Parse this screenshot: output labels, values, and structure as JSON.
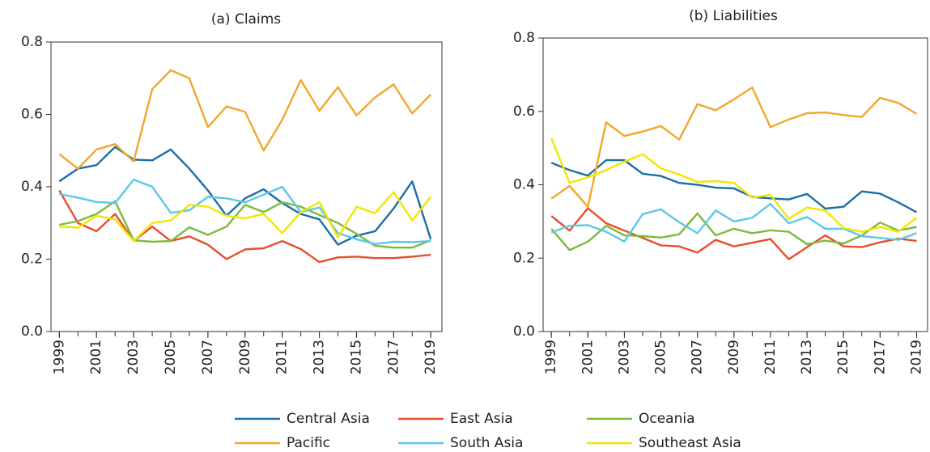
{
  "chart_data": [
    {
      "type": "line",
      "title": "(a) Claims",
      "x": [
        1999,
        2000,
        2001,
        2002,
        2003,
        2004,
        2005,
        2006,
        2007,
        2008,
        2009,
        2010,
        2011,
        2012,
        2013,
        2014,
        2015,
        2016,
        2017,
        2018,
        2019
      ],
      "xlim": [
        1998.55,
        2019.6
      ],
      "xticks": [
        1999,
        2001,
        2003,
        2005,
        2007,
        2009,
        2011,
        2013,
        2015,
        2017,
        2019
      ],
      "ylim": [
        0,
        0.8
      ],
      "yticks": [
        {
          "value": 0,
          "label": "0.0"
        },
        0.2,
        0.4,
        0.6,
        0.8
      ],
      "series": [
        {
          "name": "Central Asia",
          "color": "#1a6fa8",
          "values": [
            0.415,
            0.45,
            0.46,
            0.51,
            0.475,
            0.473,
            0.503,
            0.45,
            0.39,
            0.32,
            0.368,
            0.393,
            0.355,
            0.325,
            0.31,
            0.24,
            0.265,
            0.277,
            0.34,
            0.415,
            0.255
          ]
        },
        {
          "name": "East Asia",
          "color": "#e84e2b",
          "values": [
            0.39,
            0.3,
            0.277,
            0.325,
            0.25,
            0.29,
            0.25,
            0.263,
            0.24,
            0.2,
            0.227,
            0.23,
            0.25,
            0.228,
            0.192,
            0.205,
            0.207,
            0.203,
            0.203,
            0.207,
            0.212
          ]
        },
        {
          "name": "Oceania",
          "color": "#7dba3b",
          "values": [
            0.295,
            0.305,
            0.325,
            0.36,
            0.252,
            0.248,
            0.25,
            0.288,
            0.267,
            0.29,
            0.35,
            0.33,
            0.357,
            0.345,
            0.322,
            0.3,
            0.27,
            0.237,
            0.232,
            0.232,
            0.252
          ]
        },
        {
          "name": "Pacific",
          "color": "#f2a72b",
          "values": [
            0.49,
            0.45,
            0.503,
            0.518,
            0.47,
            0.67,
            0.722,
            0.7,
            0.565,
            0.622,
            0.607,
            0.5,
            0.585,
            0.695,
            0.61,
            0.675,
            0.597,
            0.647,
            0.683,
            0.603,
            0.655
          ]
        },
        {
          "name": "South Asia",
          "color": "#5bc8e8",
          "values": [
            0.38,
            0.37,
            0.358,
            0.355,
            0.42,
            0.4,
            0.328,
            0.335,
            0.372,
            0.368,
            0.357,
            0.378,
            0.4,
            0.33,
            0.343,
            0.272,
            0.255,
            0.242,
            0.248,
            0.247,
            0.25
          ]
        },
        {
          "name": "Southeast Asia",
          "color": "#f2e600",
          "values": [
            0.29,
            0.287,
            0.32,
            0.31,
            0.25,
            0.3,
            0.307,
            0.35,
            0.345,
            0.32,
            0.313,
            0.325,
            0.272,
            0.33,
            0.357,
            0.26,
            0.345,
            0.327,
            0.385,
            0.307,
            0.372
          ]
        }
      ]
    },
    {
      "type": "line",
      "title": "(b) Liabilities",
      "x": [
        1999,
        2000,
        2001,
        2002,
        2003,
        2004,
        2005,
        2006,
        2007,
        2008,
        2009,
        2010,
        2011,
        2012,
        2013,
        2014,
        2015,
        2016,
        2017,
        2018,
        2019
      ],
      "xlim": [
        1998.55,
        2019.6
      ],
      "xticks": [
        1999,
        2001,
        2003,
        2005,
        2007,
        2009,
        2011,
        2013,
        2015,
        2017,
        2019
      ],
      "ylim": [
        0,
        0.8
      ],
      "yticks": [
        {
          "value": 0,
          "label": "0.0"
        },
        0.2,
        0.4,
        0.6,
        0.8
      ],
      "series": [
        {
          "color": "#1a6fa8",
          "values": [
            0.46,
            0.44,
            0.425,
            0.467,
            0.467,
            0.43,
            0.424,
            0.405,
            0.4,
            0.392,
            0.39,
            0.367,
            0.363,
            0.36,
            0.375,
            0.335,
            0.34,
            0.382,
            0.376,
            0.352,
            0.325
          ]
        },
        {
          "color": "#e84e2b",
          "values": [
            0.315,
            0.275,
            0.336,
            0.295,
            0.275,
            0.255,
            0.235,
            0.232,
            0.215,
            0.25,
            0.232,
            0.242,
            0.252,
            0.197,
            0.23,
            0.262,
            0.232,
            0.23,
            0.243,
            0.253,
            0.247
          ]
        },
        {
          "color": "#7dba3b",
          "values": [
            0.28,
            0.222,
            0.245,
            0.288,
            0.262,
            0.26,
            0.256,
            0.265,
            0.322,
            0.262,
            0.28,
            0.268,
            0.276,
            0.272,
            0.238,
            0.248,
            0.24,
            0.262,
            0.297,
            0.275,
            0.285
          ]
        },
        {
          "color": "#f2a72b",
          "values": [
            0.362,
            0.397,
            0.34,
            0.57,
            0.533,
            0.545,
            0.56,
            0.523,
            0.62,
            0.603,
            0.633,
            0.665,
            0.557,
            0.578,
            0.595,
            0.597,
            0.59,
            0.585,
            0.637,
            0.623,
            0.593
          ]
        },
        {
          "color": "#5bc8e8",
          "values": [
            0.27,
            0.288,
            0.29,
            0.272,
            0.245,
            0.32,
            0.333,
            0.298,
            0.268,
            0.33,
            0.3,
            0.31,
            0.348,
            0.295,
            0.312,
            0.28,
            0.28,
            0.26,
            0.255,
            0.25,
            0.268
          ]
        },
        {
          "color": "#f2e600",
          "values": [
            0.527,
            0.405,
            0.42,
            0.44,
            0.463,
            0.483,
            0.445,
            0.428,
            0.408,
            0.41,
            0.405,
            0.365,
            0.373,
            0.307,
            0.338,
            0.33,
            0.282,
            0.272,
            0.285,
            0.272,
            0.31
          ]
        }
      ]
    }
  ]
}
